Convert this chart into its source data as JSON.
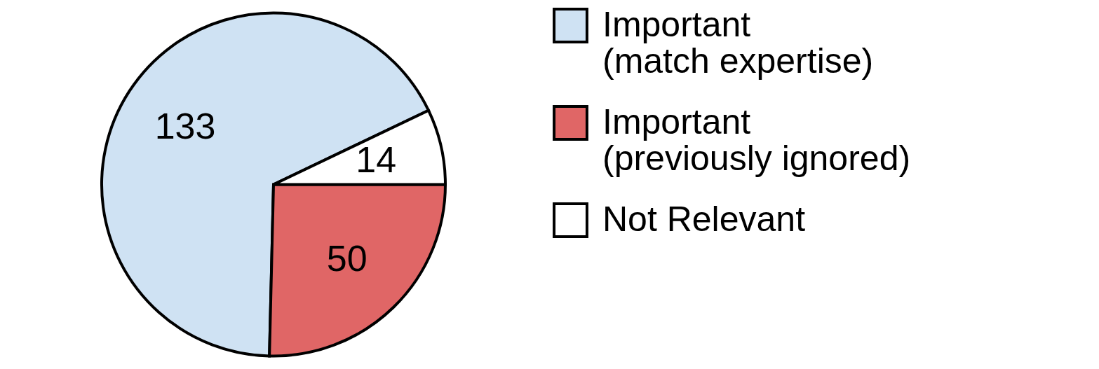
{
  "chart_data": {
    "type": "pie",
    "categories": [
      "Important (match expertise)",
      "Important (previously ignored)",
      "Not Relevant"
    ],
    "values": [
      133,
      50,
      14
    ],
    "colors": [
      "#cfe2f3",
      "#e06666",
      "#ffffff"
    ],
    "data_labels": true,
    "legend": "right"
  }
}
